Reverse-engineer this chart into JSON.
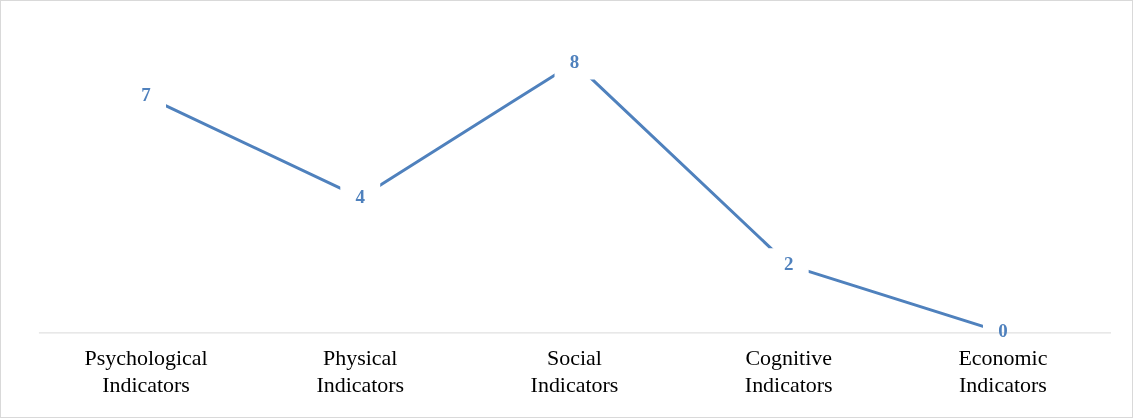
{
  "chart_data": {
    "type": "line",
    "categories": [
      "Psychological Indicators",
      "Physical Indicators",
      "Social Indicators",
      "Cognitive Indicators",
      "Economic Indicators"
    ],
    "series": [
      {
        "color": "#4f81bd",
        "values": [
          7,
          4,
          8,
          2,
          0
        ]
      }
    ],
    "data_labels": true,
    "grid": false,
    "legend": false,
    "marker": "none"
  }
}
